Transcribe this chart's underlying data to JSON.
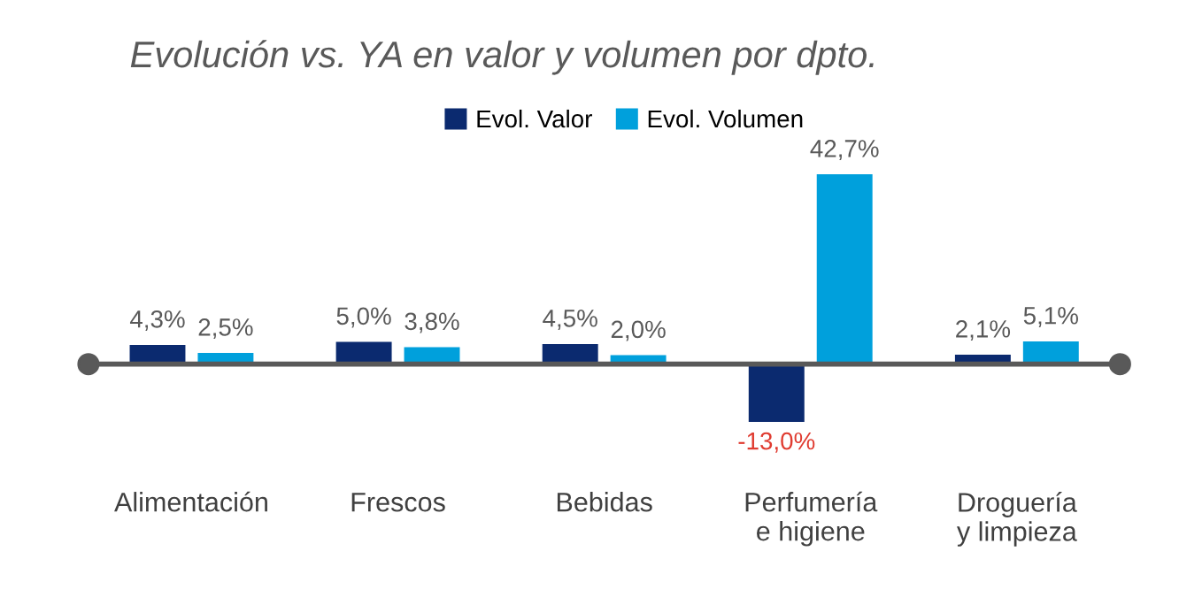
{
  "chart_data": {
    "type": "bar",
    "title": "Evolución vs. YA en valor y volumen por dpto.",
    "categories": [
      "Alimentación",
      "Frescos",
      "Bebidas",
      "Perfumería\ne higiene",
      "Droguería\ny limpieza"
    ],
    "series": [
      {
        "name": "Evol. Valor",
        "color": "#0b2a6f",
        "values": [
          4.3,
          5.0,
          4.5,
          -13.0,
          2.1
        ],
        "value_labels": [
          "4,3%",
          "5,0%",
          "4,5%",
          "-13,0%",
          "2,1%"
        ]
      },
      {
        "name": "Evol. Volumen",
        "color": "#00a0dc",
        "values": [
          2.5,
          3.8,
          2.0,
          42.7,
          5.1
        ],
        "value_labels": [
          "2,5%",
          "3,8%",
          "2,0%",
          "42,7%",
          "5,1%"
        ]
      }
    ],
    "legend": "top",
    "grid": false
  }
}
